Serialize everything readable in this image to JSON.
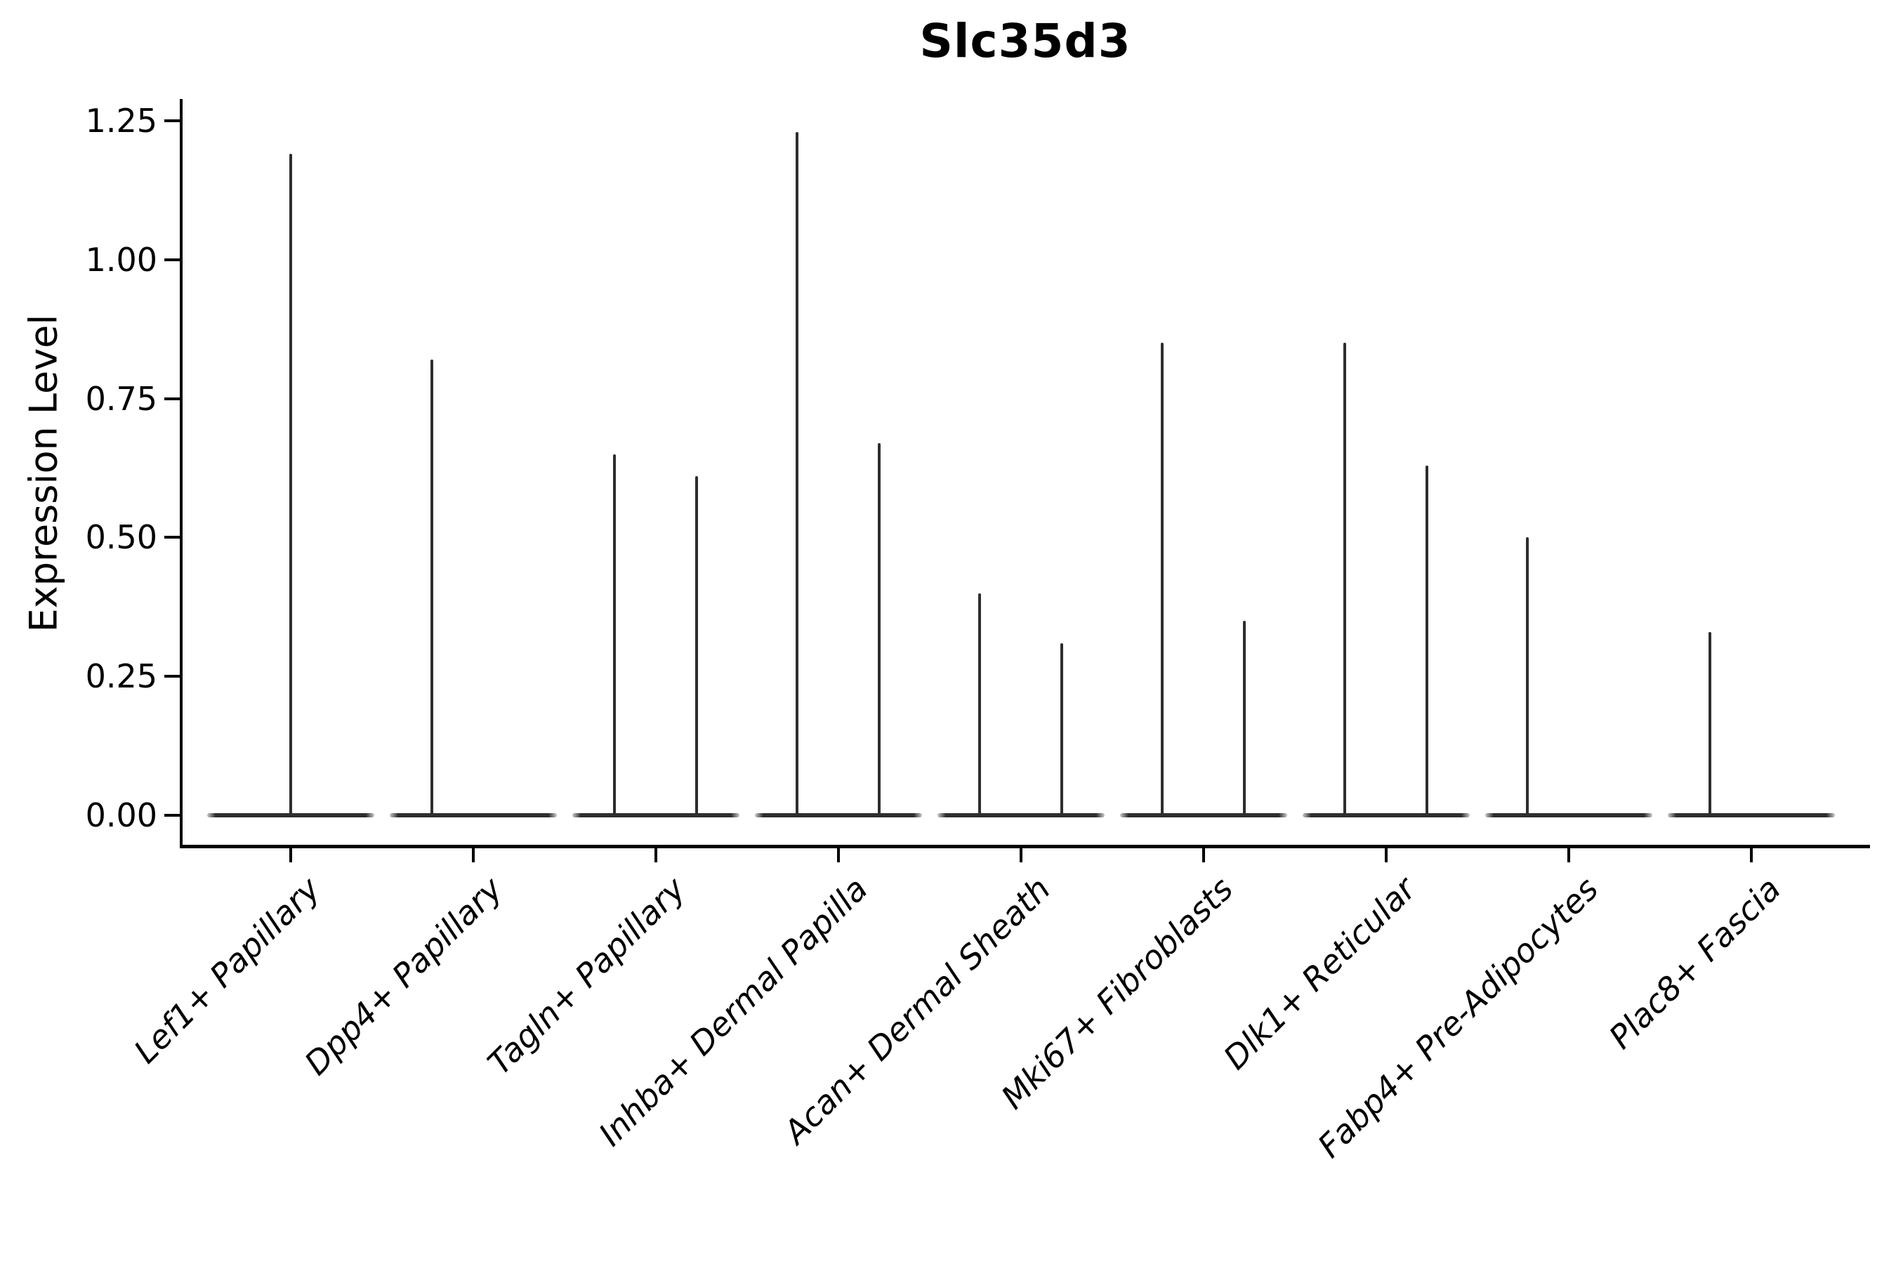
{
  "figure": {
    "kind": "matplotlib-style violin plot (single-cell gene expression)",
    "background_color": "#ffffff",
    "line_color": "#2e2e2e",
    "axis_color": "#000000"
  },
  "chart_data": {
    "type": "violin",
    "title": "Slc35d3",
    "xlabel": "",
    "ylabel": "Expression Level",
    "ylim": [
      -0.06,
      1.29
    ],
    "grid": false,
    "legend": "none",
    "y_ticks": [
      {
        "value": 0.0,
        "label": "0.00"
      },
      {
        "value": 0.25,
        "label": "0.25"
      },
      {
        "value": 0.5,
        "label": "0.50"
      },
      {
        "value": 0.75,
        "label": "0.75"
      },
      {
        "value": 1.0,
        "label": "1.00"
      },
      {
        "value": 1.25,
        "label": "1.25"
      }
    ],
    "categories": [
      "Lef1+ Papillary",
      "Dpp4+ Papillary",
      "Tagln+ Papillary",
      "Inhba+ Dermal Papilla",
      "Acan+ Dermal Sheath",
      "Mki67+ Fibroblasts",
      "Dlk1+ Reticular",
      "Fabp4+ Pre-Adipocytes",
      "Plac8+ Fascia"
    ],
    "baseline_value": 0.0,
    "note": "Each category shows a violin collapsed to a flat line at expression 0 with thin vertical spikes marking maximum expression values; offset is the spike position as a fraction of the category slot width (0 = slot center).",
    "violins": [
      {
        "label": "Lef1+ Papillary",
        "spikes": [
          {
            "offset": 0.0,
            "value": 1.19
          }
        ]
      },
      {
        "label": "Dpp4+ Papillary",
        "spikes": [
          {
            "offset": -0.225,
            "value": 0.82
          }
        ]
      },
      {
        "label": "Tagln+ Papillary",
        "spikes": [
          {
            "offset": -0.225,
            "value": 0.65
          },
          {
            "offset": 0.225,
            "value": 0.61
          }
        ]
      },
      {
        "label": "Inhba+ Dermal Papilla",
        "spikes": [
          {
            "offset": -0.225,
            "value": 1.23
          },
          {
            "offset": 0.225,
            "value": 0.67
          }
        ]
      },
      {
        "label": "Acan+ Dermal Sheath",
        "spikes": [
          {
            "offset": -0.225,
            "value": 0.4
          },
          {
            "offset": 0.225,
            "value": 0.31
          }
        ]
      },
      {
        "label": "Mki67+ Fibroblasts",
        "spikes": [
          {
            "offset": -0.225,
            "value": 0.85
          },
          {
            "offset": 0.225,
            "value": 0.35
          }
        ]
      },
      {
        "label": "Dlk1+ Reticular",
        "spikes": [
          {
            "offset": -0.225,
            "value": 0.85
          },
          {
            "offset": 0.225,
            "value": 0.63
          }
        ]
      },
      {
        "label": "Fabp4+ Pre-Adipocytes",
        "spikes": [
          {
            "offset": -0.225,
            "value": 0.5
          }
        ]
      },
      {
        "label": "Plac8+ Fascia",
        "spikes": [
          {
            "offset": -0.225,
            "value": 0.33
          }
        ]
      }
    ]
  }
}
